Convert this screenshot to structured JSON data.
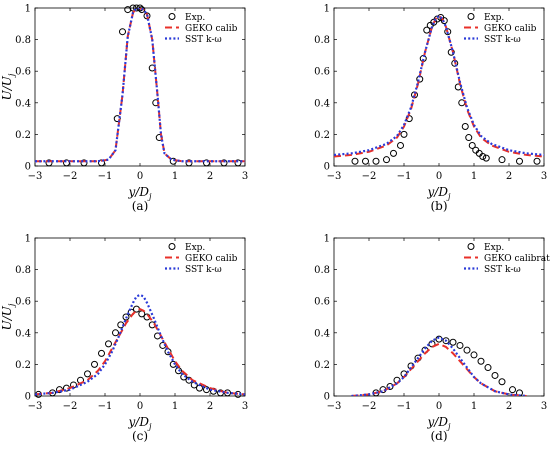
{
  "chart_data": [
    {
      "type": "line",
      "panel_label": "(a)",
      "xlabel": "y/D",
      "xlabel_sub": "j",
      "ylabel": "U/U",
      "ylabel_sub": "j",
      "xlim": [
        -3,
        3
      ],
      "ylim": [
        0,
        1
      ],
      "xticks": [
        "-3",
        "-2",
        "-1",
        "0",
        "1",
        "2",
        "3"
      ],
      "yticks": [
        "0",
        "0.2",
        "0.4",
        "0.6",
        "0.8",
        "1"
      ],
      "legend_position": "top-right",
      "series": [
        {
          "name": "Exp.",
          "style": "marker",
          "x": [
            -2.6,
            -2.1,
            -1.6,
            -1.1,
            -0.65,
            -0.5,
            -0.35,
            -0.2,
            -0.1,
            0.0,
            0.05,
            0.2,
            0.35,
            0.45,
            0.55,
            0.95,
            1.4,
            1.9,
            2.4,
            2.8
          ],
          "y": [
            0.02,
            0.02,
            0.02,
            0.02,
            0.3,
            0.85,
            0.99,
            1.0,
            1.0,
            1.0,
            0.99,
            0.95,
            0.62,
            0.4,
            0.18,
            0.03,
            0.02,
            0.02,
            0.02,
            0.02
          ]
        },
        {
          "name": "GEKO calib",
          "style": "dashed",
          "x": [
            -3,
            -2,
            -1.2,
            -0.9,
            -0.7,
            -0.5,
            -0.35,
            -0.2,
            -0.1,
            0,
            0.1,
            0.2,
            0.35,
            0.5,
            0.6,
            0.7,
            0.9,
            1.2,
            2,
            3
          ],
          "y": [
            0.03,
            0.03,
            0.03,
            0.04,
            0.1,
            0.45,
            0.82,
            0.97,
            1.0,
            1.0,
            0.99,
            0.96,
            0.8,
            0.45,
            0.2,
            0.08,
            0.04,
            0.03,
            0.03,
            0.03
          ]
        },
        {
          "name": "SST k-ω",
          "style": "dotted",
          "x": [
            -3,
            -2,
            -1.2,
            -0.9,
            -0.7,
            -0.5,
            -0.35,
            -0.2,
            -0.1,
            0,
            0.1,
            0.2,
            0.35,
            0.5,
            0.6,
            0.7,
            0.9,
            1.2,
            2,
            3
          ],
          "y": [
            0.03,
            0.03,
            0.03,
            0.04,
            0.1,
            0.45,
            0.82,
            0.97,
            1.0,
            1.0,
            0.99,
            0.96,
            0.8,
            0.45,
            0.2,
            0.08,
            0.04,
            0.03,
            0.03,
            0.03
          ]
        }
      ]
    },
    {
      "type": "line",
      "panel_label": "(b)",
      "xlabel": "y/D",
      "xlabel_sub": "j",
      "ylabel": "",
      "ylabel_sub": "",
      "xlim": [
        -3,
        3
      ],
      "ylim": [
        0,
        1
      ],
      "xticks": [
        "-3",
        "-2",
        "-1",
        "0",
        "1",
        "2",
        "3"
      ],
      "yticks": [
        "0",
        "0.2",
        "0.4",
        "0.6",
        "0.8",
        "1"
      ],
      "legend_position": "top-right",
      "series": [
        {
          "name": "Exp.",
          "style": "marker",
          "x": [
            -2.4,
            -2.1,
            -1.8,
            -1.5,
            -1.3,
            -1.1,
            -1.0,
            -0.85,
            -0.7,
            -0.55,
            -0.45,
            -0.35,
            -0.25,
            -0.15,
            -0.05,
            0.05,
            0.15,
            0.25,
            0.35,
            0.45,
            0.55,
            0.65,
            0.75,
            0.85,
            0.95,
            1.05,
            1.15,
            1.25,
            1.35,
            1.8,
            2.3,
            2.8
          ],
          "y": [
            0.03,
            0.03,
            0.03,
            0.04,
            0.08,
            0.13,
            0.2,
            0.3,
            0.45,
            0.55,
            0.68,
            0.86,
            0.89,
            0.91,
            0.93,
            0.94,
            0.92,
            0.85,
            0.72,
            0.65,
            0.5,
            0.4,
            0.25,
            0.18,
            0.13,
            0.1,
            0.08,
            0.06,
            0.05,
            0.04,
            0.03,
            0.03
          ]
        },
        {
          "name": "GEKO calib",
          "style": "dashed",
          "x": [
            -3,
            -2.5,
            -2,
            -1.5,
            -1.2,
            -1,
            -0.8,
            -0.6,
            -0.4,
            -0.2,
            -0.1,
            0,
            0.1,
            0.2,
            0.4,
            0.6,
            0.8,
            1,
            1.2,
            1.5,
            2,
            2.5,
            3
          ],
          "y": [
            0.06,
            0.07,
            0.09,
            0.13,
            0.18,
            0.25,
            0.36,
            0.52,
            0.72,
            0.88,
            0.93,
            0.95,
            0.93,
            0.88,
            0.72,
            0.52,
            0.36,
            0.25,
            0.18,
            0.13,
            0.09,
            0.07,
            0.06
          ]
        },
        {
          "name": "SST k-ω",
          "style": "dotted",
          "x": [
            -3,
            -2.5,
            -2,
            -1.5,
            -1.2,
            -1,
            -0.8,
            -0.6,
            -0.4,
            -0.2,
            -0.1,
            0,
            0.1,
            0.2,
            0.4,
            0.6,
            0.8,
            1,
            1.2,
            1.5,
            2,
            2.5,
            3
          ],
          "y": [
            0.07,
            0.08,
            0.1,
            0.14,
            0.19,
            0.26,
            0.37,
            0.53,
            0.72,
            0.88,
            0.93,
            0.95,
            0.93,
            0.88,
            0.72,
            0.53,
            0.37,
            0.26,
            0.19,
            0.14,
            0.1,
            0.08,
            0.07
          ]
        }
      ]
    },
    {
      "type": "line",
      "panel_label": "(c)",
      "xlabel": "y/D",
      "xlabel_sub": "j",
      "ylabel": "U/U",
      "ylabel_sub": "j",
      "xlim": [
        -3,
        3
      ],
      "ylim": [
        0,
        1
      ],
      "xticks": [
        "-3",
        "-2",
        "-1",
        "0",
        "1",
        "2",
        "3"
      ],
      "yticks": [
        "0",
        "0.2",
        "0.4",
        "0.6",
        "0.8",
        "1"
      ],
      "legend_position": "top-right",
      "series": [
        {
          "name": "Exp.",
          "style": "marker",
          "x": [
            -2.9,
            -2.5,
            -2.3,
            -2.1,
            -1.9,
            -1.7,
            -1.5,
            -1.3,
            -1.1,
            -0.9,
            -0.7,
            -0.55,
            -0.4,
            -0.25,
            -0.1,
            0.05,
            0.2,
            0.35,
            0.5,
            0.65,
            0.8,
            0.95,
            1.1,
            1.25,
            1.4,
            1.55,
            1.7,
            1.9,
            2.1,
            2.3,
            2.5,
            2.8
          ],
          "y": [
            0.01,
            0.02,
            0.04,
            0.05,
            0.07,
            0.1,
            0.14,
            0.2,
            0.27,
            0.33,
            0.4,
            0.45,
            0.5,
            0.53,
            0.55,
            0.52,
            0.5,
            0.45,
            0.38,
            0.32,
            0.28,
            0.2,
            0.16,
            0.12,
            0.1,
            0.07,
            0.05,
            0.04,
            0.03,
            0.02,
            0.02,
            0.01
          ]
        },
        {
          "name": "GEKO calib",
          "style": "dashed",
          "x": [
            -3,
            -2.5,
            -2,
            -1.5,
            -1.2,
            -1,
            -0.8,
            -0.6,
            -0.4,
            -0.2,
            -0.1,
            0,
            0.1,
            0.2,
            0.4,
            0.6,
            0.8,
            1,
            1.2,
            1.5,
            2,
            2.5,
            3
          ],
          "y": [
            0.01,
            0.02,
            0.05,
            0.1,
            0.16,
            0.22,
            0.3,
            0.38,
            0.46,
            0.52,
            0.54,
            0.55,
            0.54,
            0.52,
            0.46,
            0.38,
            0.3,
            0.22,
            0.16,
            0.1,
            0.05,
            0.02,
            0.01
          ]
        },
        {
          "name": "SST k-ω",
          "style": "dotted",
          "x": [
            -3,
            -2.5,
            -2,
            -1.5,
            -1.2,
            -1,
            -0.8,
            -0.6,
            -0.4,
            -0.2,
            -0.1,
            0,
            0.1,
            0.2,
            0.4,
            0.6,
            0.8,
            1,
            1.2,
            1.5,
            2,
            2.5,
            3
          ],
          "y": [
            0.01,
            0.02,
            0.04,
            0.09,
            0.14,
            0.2,
            0.28,
            0.38,
            0.49,
            0.59,
            0.63,
            0.64,
            0.63,
            0.59,
            0.49,
            0.38,
            0.28,
            0.2,
            0.14,
            0.09,
            0.04,
            0.02,
            0.01
          ]
        }
      ]
    },
    {
      "type": "line",
      "panel_label": "(d)",
      "xlabel": "y/D",
      "xlabel_sub": "j",
      "ylabel": "",
      "ylabel_sub": "",
      "xlim": [
        -3,
        3
      ],
      "ylim": [
        0,
        1
      ],
      "xticks": [
        "-3",
        "-2",
        "-1",
        "0",
        "1",
        "2",
        "3"
      ],
      "yticks": [
        "0",
        "0.2",
        "0.4",
        "0.6",
        "0.8",
        "1"
      ],
      "legend_position": "top-right",
      "series": [
        {
          "name": "Exp.",
          "style": "marker",
          "x": [
            -1.8,
            -1.6,
            -1.4,
            -1.2,
            -1.0,
            -0.8,
            -0.6,
            -0.4,
            -0.2,
            0.0,
            0.2,
            0.4,
            0.6,
            0.8,
            1.0,
            1.2,
            1.4,
            1.6,
            1.8,
            2.1,
            2.3
          ],
          "y": [
            0.02,
            0.04,
            0.06,
            0.1,
            0.14,
            0.19,
            0.24,
            0.29,
            0.33,
            0.36,
            0.35,
            0.34,
            0.32,
            0.29,
            0.26,
            0.22,
            0.18,
            0.13,
            0.09,
            0.04,
            0.02
          ]
        },
        {
          "name": "GEKO calibrated",
          "style": "dashed",
          "x": [
            -2.5,
            -2,
            -1.6,
            -1.2,
            -1,
            -0.8,
            -0.6,
            -0.4,
            -0.2,
            0,
            0.2,
            0.4,
            0.6,
            0.8,
            1,
            1.2,
            1.6,
            2,
            2.5
          ],
          "y": [
            0.0,
            0.01,
            0.03,
            0.08,
            0.12,
            0.17,
            0.22,
            0.27,
            0.31,
            0.33,
            0.31,
            0.27,
            0.22,
            0.17,
            0.12,
            0.08,
            0.03,
            0.01,
            0.0
          ]
        },
        {
          "name": "SST k-ω",
          "style": "dotted",
          "x": [
            -2.5,
            -2,
            -1.6,
            -1.2,
            -1,
            -0.8,
            -0.6,
            -0.4,
            -0.2,
            0,
            0.2,
            0.4,
            0.6,
            0.8,
            1,
            1.2,
            1.6,
            2,
            2.5
          ],
          "y": [
            0.0,
            0.01,
            0.03,
            0.08,
            0.12,
            0.18,
            0.24,
            0.3,
            0.35,
            0.37,
            0.35,
            0.3,
            0.24,
            0.18,
            0.12,
            0.08,
            0.03,
            0.01,
            0.0
          ]
        }
      ]
    }
  ],
  "colors": {
    "exp_marker": "#000000",
    "geko": "#e8302a",
    "sst": "#2a3ad8"
  }
}
